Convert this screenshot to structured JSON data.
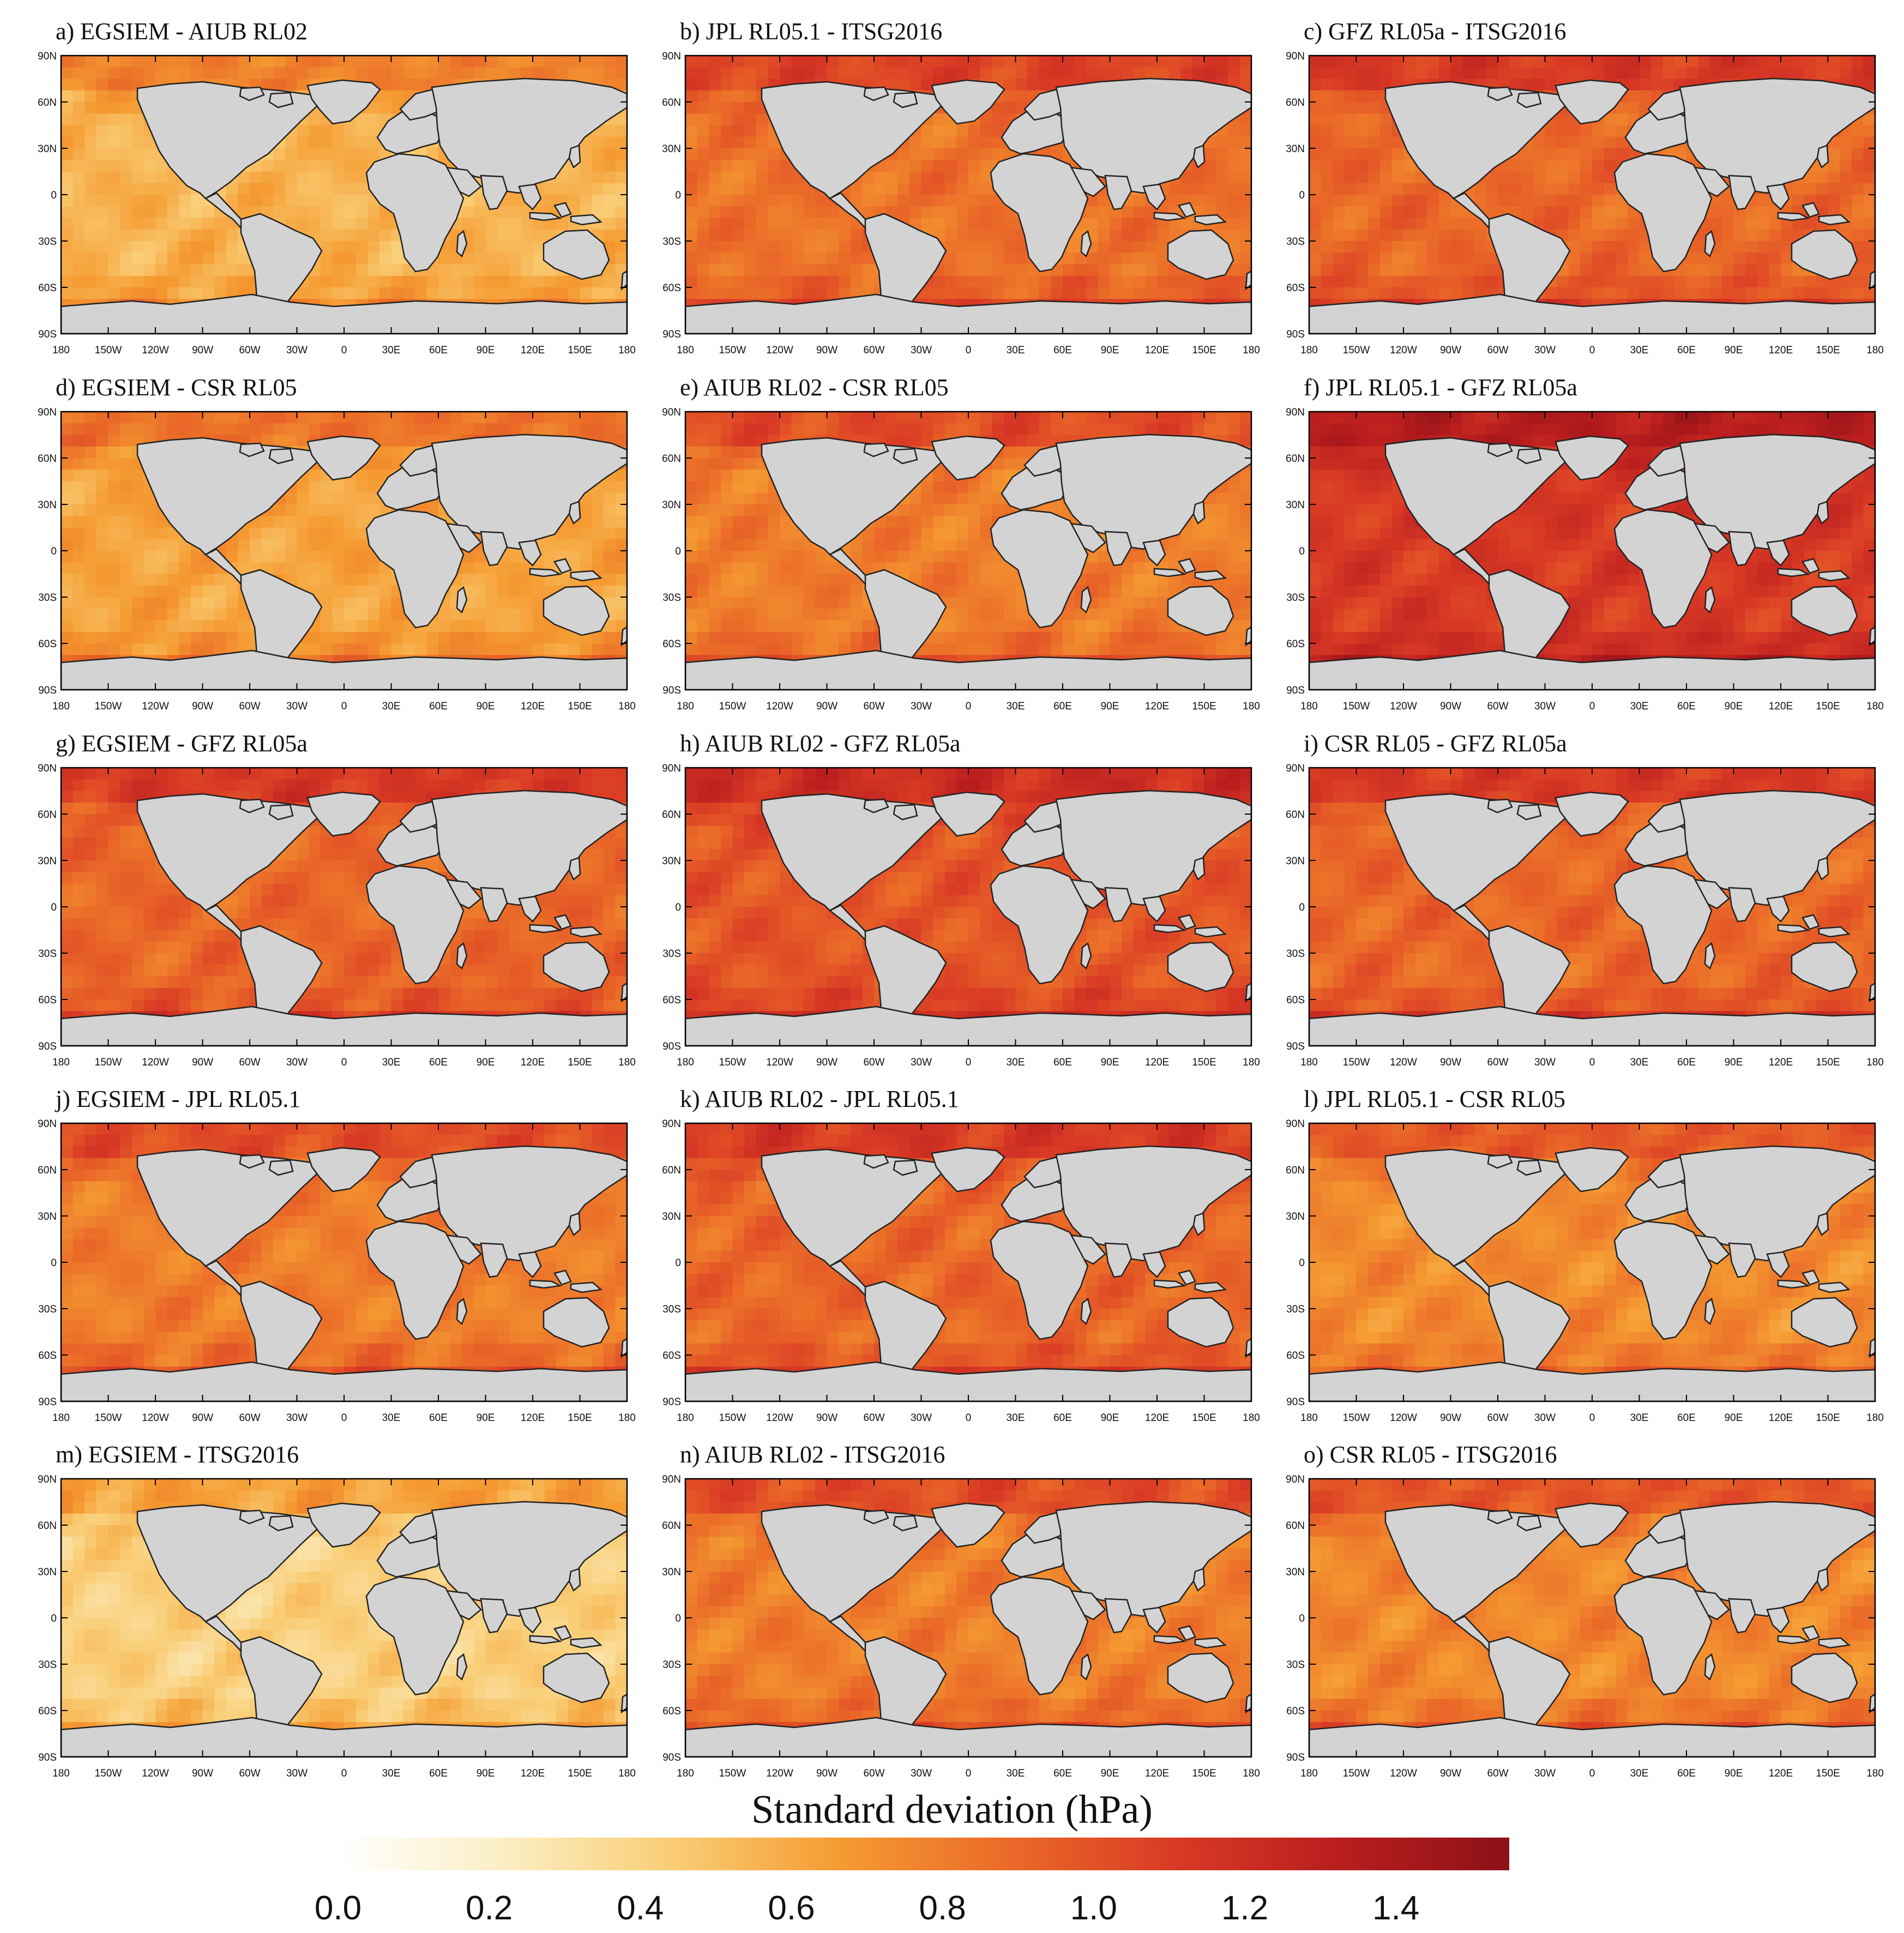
{
  "chart_data": {
    "type": "heatmap",
    "figure_kind": "global map panels",
    "colorbar": {
      "title": "Standard deviation (hPa)",
      "ticks": [
        "0.0",
        "0.2",
        "0.4",
        "0.6",
        "0.8",
        "1.0",
        "1.2",
        "1.4"
      ],
      "range": [
        0.0,
        1.55
      ],
      "colors": [
        "#ffffff",
        "#fbeec4",
        "#f9cd75",
        "#f59b32",
        "#ea6a28",
        "#d93a25",
        "#b81d1e",
        "#8c1117"
      ]
    },
    "x_tick_labels": [
      "180",
      "150W",
      "120W",
      "90W",
      "60W",
      "30W",
      "0",
      "30E",
      "60E",
      "90E",
      "120E",
      "150E",
      "180"
    ],
    "y_tick_labels": [
      "90N",
      "60N",
      "30N",
      "0",
      "30S",
      "60S",
      "90S"
    ],
    "land_color": "#d3d3d3",
    "panels": [
      {
        "title": "a) EGSIEM - AIUB RL02",
        "mean_std_hpa": 0.56
      },
      {
        "title": "b) JPL RL05.1 - ITSG2016",
        "mean_std_hpa": 0.85
      },
      {
        "title": "c) GFZ RL05a - ITSG2016",
        "mean_std_hpa": 0.9
      },
      {
        "title": "d) EGSIEM - CSR RL05",
        "mean_std_hpa": 0.63
      },
      {
        "title": "e) AIUB RL02 - CSR RL05",
        "mean_std_hpa": 0.8
      },
      {
        "title": "f) JPL RL05.1 - GFZ RL05a",
        "mean_std_hpa": 1.12
      },
      {
        "title": "g) EGSIEM - GFZ RL05a",
        "mean_std_hpa": 0.9
      },
      {
        "title": "h) AIUB RL02 - GFZ RL05a",
        "mean_std_hpa": 0.98
      },
      {
        "title": "i) CSR RL05 - GFZ RL05a",
        "mean_std_hpa": 0.9
      },
      {
        "title": "j) EGSIEM - JPL RL05.1",
        "mean_std_hpa": 0.8
      },
      {
        "title": "k) AIUB RL02 - JPL RL05.1",
        "mean_std_hpa": 0.9
      },
      {
        "title": "l) JPL RL05.1 - CSR RL05",
        "mean_std_hpa": 0.74
      },
      {
        "title": "m) EGSIEM - ITSG2016",
        "mean_std_hpa": 0.42
      },
      {
        "title": "n) AIUB RL02 - ITSG2016",
        "mean_std_hpa": 0.8
      },
      {
        "title": "o) CSR RL05 - ITSG2016",
        "mean_std_hpa": 0.76
      }
    ]
  }
}
